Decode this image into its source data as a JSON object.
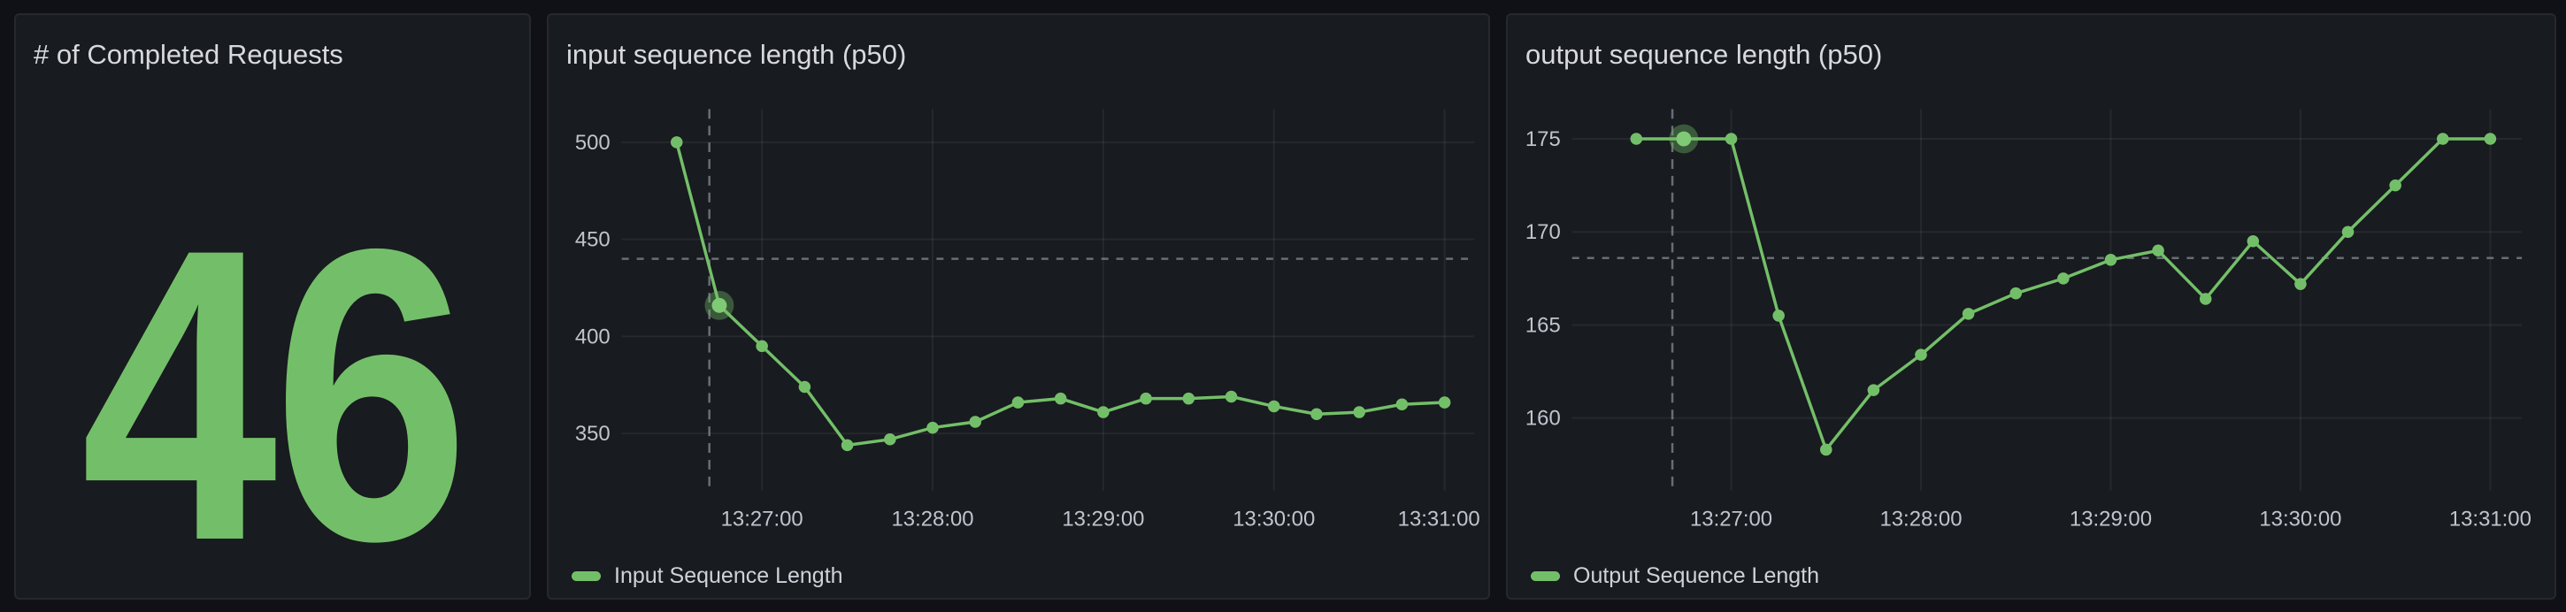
{
  "theme": {
    "canvas_bg": "#101116",
    "panel_bg": "#181b1f",
    "panel_border": "#25282e",
    "title_color": "#d8d9e0",
    "axis_text_color": "#c2c3cd",
    "legend_text_color": "#d0d1da",
    "grid_color": "rgba(204,204,220,0.08)",
    "crosshair_color": "#858993",
    "series_green": "#73bf69",
    "highlight_dot_color": "#7fca74"
  },
  "stat_panel": {
    "title": "# of Completed Requests",
    "value": "46"
  },
  "input_panel": {
    "title": "input sequence length (p50)",
    "legend_label": "Input Sequence Length"
  },
  "output_panel": {
    "title": "output sequence length (p50)",
    "legend_label": "Output Sequence Length"
  },
  "chart_data": [
    {
      "id": "input",
      "type": "line",
      "title": "input sequence length (p50)",
      "grid": true,
      "legend_position": "bottom",
      "x_time_labels": [
        "13:27:00",
        "13:28:00",
        "13:29:00",
        "13:30:00",
        "13:31:00"
      ],
      "x_tick_seconds": [
        60,
        120,
        180,
        240,
        300
      ],
      "x_seconds": [
        30,
        45,
        60,
        75,
        90,
        105,
        120,
        135,
        150,
        165,
        180,
        195,
        210,
        225,
        240,
        255,
        270,
        285,
        300
      ],
      "series": [
        {
          "name": "Input Sequence Length",
          "color": "#73bf69",
          "values": [
            500,
            416,
            395,
            374,
            344,
            347,
            353,
            356,
            366,
            368,
            361,
            368,
            368,
            369,
            364,
            360,
            361,
            365,
            366
          ]
        }
      ],
      "y_ticks": [
        350,
        400,
        450,
        500
      ],
      "ylim": [
        320.6,
        517.1
      ],
      "xlim_seconds": [
        10.7,
        310.4
      ],
      "crosshair": {
        "x_seconds": 41.5,
        "y_value": 440,
        "highlight_point_index": 1
      }
    },
    {
      "id": "output",
      "type": "line",
      "title": "output sequence length (p50)",
      "grid": true,
      "legend_position": "bottom",
      "x_time_labels": [
        "13:27:00",
        "13:28:00",
        "13:29:00",
        "13:30:00",
        "13:31:00"
      ],
      "x_tick_seconds": [
        60,
        120,
        180,
        240,
        300
      ],
      "x_seconds": [
        30,
        45,
        60,
        75,
        90,
        105,
        120,
        135,
        150,
        165,
        180,
        195,
        210,
        225,
        240,
        255,
        270,
        285,
        300
      ],
      "series": [
        {
          "name": "Output Sequence Length",
          "color": "#73bf69",
          "values": [
            175,
            175,
            175,
            165.5,
            158.3,
            161.5,
            163.4,
            165.6,
            166.7,
            167.5,
            168.5,
            169,
            166.4,
            169.5,
            167.2,
            170,
            172.5,
            175,
            175
          ]
        }
      ],
      "y_ticks": [
        160,
        165,
        170,
        175
      ],
      "ylim": [
        156.1,
        176.6
      ],
      "xlim_seconds": [
        9.7,
        310
      ],
      "crosshair": {
        "x_seconds": 41.4,
        "y_value": 168.6,
        "highlight_point_index": 1
      }
    }
  ]
}
